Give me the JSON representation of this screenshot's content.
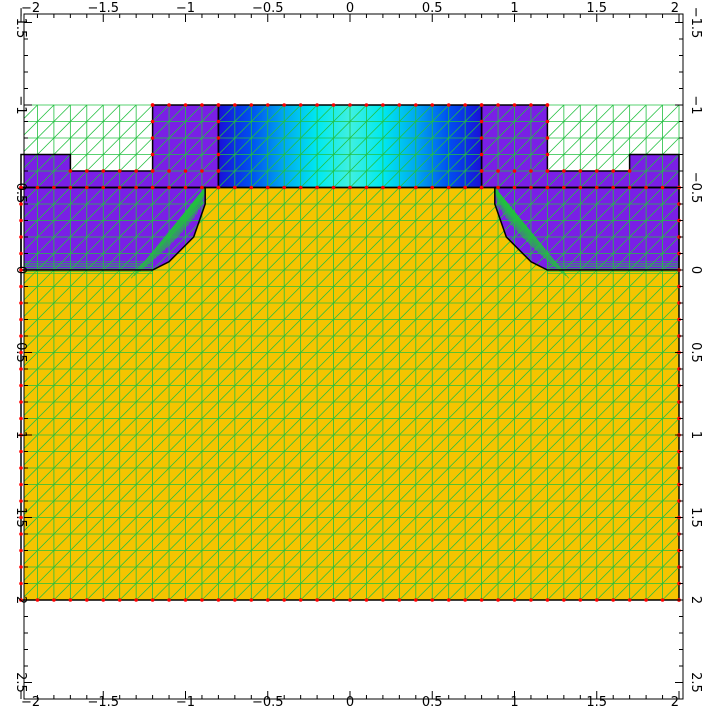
{
  "chart_data": {
    "type": "mesh",
    "title": "",
    "xlabel": "",
    "ylabel": "",
    "xlim": [
      -2,
      2
    ],
    "ylim": [
      -1.75,
      2.5
    ],
    "y_axis_inverted": true,
    "x_ticks": [
      {
        "value": -2,
        "label": "−2"
      },
      {
        "value": -1.5,
        "label": "−1.5"
      },
      {
        "value": -1,
        "label": "−1"
      },
      {
        "value": -0.5,
        "label": "−0.5"
      },
      {
        "value": 0,
        "label": "0"
      },
      {
        "value": 0.5,
        "label": "0.5"
      },
      {
        "value": 1,
        "label": "1"
      },
      {
        "value": 1.5,
        "label": "1.5"
      },
      {
        "value": 2,
        "label": "2"
      }
    ],
    "y_ticks": [
      {
        "value": -1.5,
        "label": "−1.5"
      },
      {
        "value": -1,
        "label": "−1"
      },
      {
        "value": -0.5,
        "label": "−0.5"
      },
      {
        "value": 0,
        "label": "0"
      },
      {
        "value": 0.5,
        "label": "0.5"
      },
      {
        "value": 1,
        "label": "1"
      },
      {
        "value": 1.5,
        "label": "1.5"
      },
      {
        "value": 2,
        "label": "2"
      },
      {
        "value": 2.5,
        "label": "2.5"
      }
    ],
    "regions": [
      {
        "name": "substrate",
        "color": "#f5c400",
        "polygon": [
          [
            -2,
            -0.5
          ],
          [
            2,
            -0.5
          ],
          [
            2,
            2
          ],
          [
            -2,
            2
          ]
        ]
      },
      {
        "name": "left-oxide",
        "color": "#7a1fe6",
        "polygon": [
          [
            -2,
            -0.7
          ],
          [
            -1.7,
            -0.7
          ],
          [
            -1.7,
            -0.6
          ],
          [
            -1.2,
            -0.6
          ],
          [
            -1.2,
            -1
          ],
          [
            -0.8,
            -1
          ],
          [
            -0.8,
            -0.5
          ],
          [
            -2,
            -0.5
          ]
        ]
      },
      {
        "name": "right-oxide",
        "color": "#7a1fe6",
        "polygon": [
          [
            0.8,
            -1
          ],
          [
            1.2,
            -1
          ],
          [
            1.2,
            -0.6
          ],
          [
            1.7,
            -0.6
          ],
          [
            1.7,
            -0.7
          ],
          [
            2,
            -0.7
          ],
          [
            2,
            -0.5
          ],
          [
            0.8,
            -0.5
          ]
        ]
      },
      {
        "name": "gate",
        "color": "gradient",
        "polygon": [
          [
            -0.8,
            -1
          ],
          [
            0.8,
            -1
          ],
          [
            0.8,
            -0.5
          ],
          [
            -0.8,
            -0.5
          ]
        ]
      },
      {
        "name": "left-spacer",
        "color": "#7a1fe6",
        "polygon": [
          [
            -2,
            -0.5
          ],
          [
            -0.88,
            -0.5
          ],
          [
            -0.88,
            -0.4
          ],
          [
            -0.95,
            -0.2
          ],
          [
            -1.1,
            -0.05
          ],
          [
            -1.2,
            0
          ],
          [
            -2,
            0
          ]
        ]
      },
      {
        "name": "right-spacer",
        "color": "#7a1fe6",
        "polygon": [
          [
            0.88,
            -0.5
          ],
          [
            2,
            -0.5
          ],
          [
            2,
            0
          ],
          [
            1.2,
            0
          ],
          [
            1.1,
            -0.05
          ],
          [
            0.95,
            -0.2
          ],
          [
            0.88,
            -0.4
          ]
        ]
      }
    ],
    "gate_gradient_colors": [
      "#1a10d8",
      "#0050f0",
      "#00a8f0",
      "#00e8f0",
      "#40f0e0",
      "#00e8f0",
      "#00a8f0",
      "#0050f0",
      "#1a10d8"
    ],
    "mesh_color": "#22c040",
    "node_color": "#ff0000",
    "boundary_color": "#000000",
    "mesh_grid": {
      "x_step": 0.1,
      "y_step": 0.1
    }
  }
}
